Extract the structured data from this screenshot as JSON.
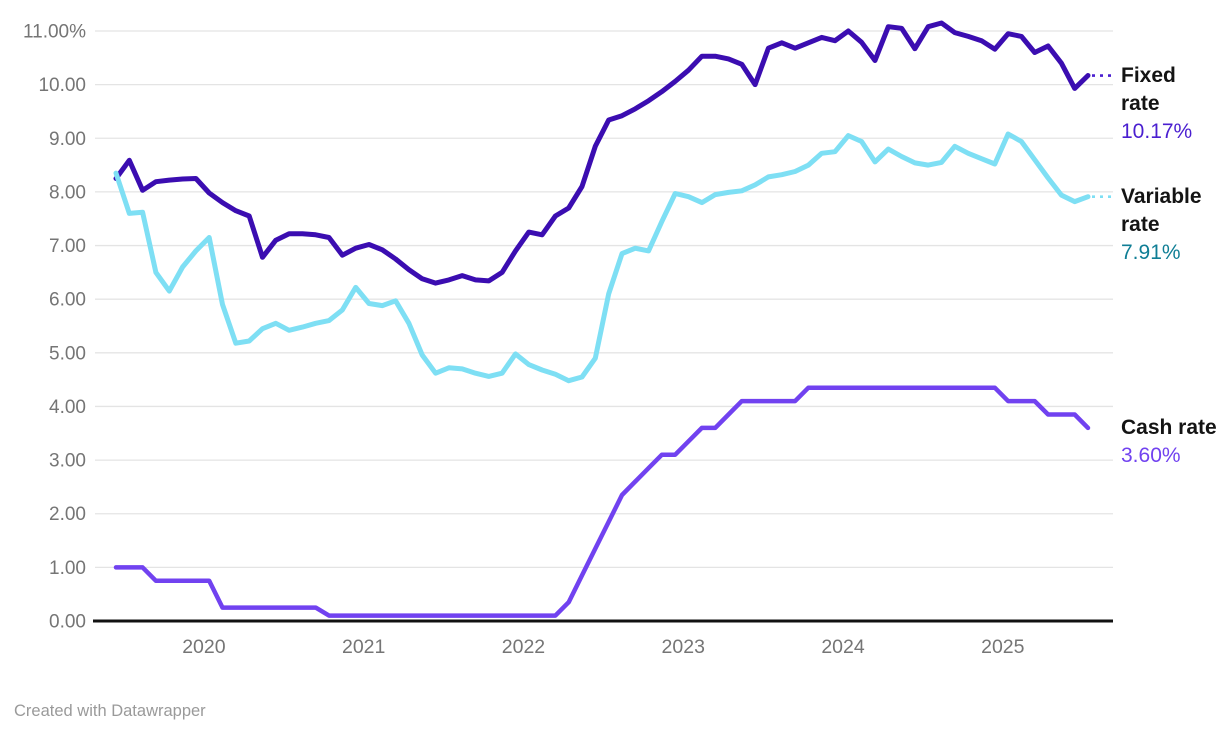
{
  "footer": {
    "text": "Created with Datawrapper"
  },
  "chart": {
    "y_axis": {
      "ticks": [
        {
          "v": 11,
          "label": "11.00%"
        },
        {
          "v": 10,
          "label": "10.00"
        },
        {
          "v": 9,
          "label": "9.00"
        },
        {
          "v": 8,
          "label": "8.00"
        },
        {
          "v": 7,
          "label": "7.00"
        },
        {
          "v": 6,
          "label": "6.00"
        },
        {
          "v": 5,
          "label": "5.00"
        },
        {
          "v": 4,
          "label": "4.00"
        },
        {
          "v": 3,
          "label": "3.00"
        },
        {
          "v": 2,
          "label": "2.00"
        },
        {
          "v": 1,
          "label": "1.00"
        },
        {
          "v": 0,
          "label": "0.00"
        }
      ],
      "text_color": "#757575",
      "grid_color": "#e4e4e4",
      "axis_color": "#121212"
    },
    "x_axis": {
      "years": [
        {
          "label": "2020",
          "i": 6
        },
        {
          "label": "2021",
          "i": 18
        },
        {
          "label": "2022",
          "i": 30
        },
        {
          "label": "2023",
          "i": 42
        },
        {
          "label": "2024",
          "i": 54
        },
        {
          "label": "2025",
          "i": 66
        }
      ],
      "text_color": "#757575"
    }
  },
  "chart_data": {
    "type": "line",
    "title": "",
    "xlabel": "",
    "ylabel": "",
    "x_unit": "month",
    "x_start": "2019-07",
    "x_end": "2025-08",
    "ylim": [
      0,
      11
    ],
    "grid": "horizontal",
    "legend_position": "right-edge-labels",
    "series": [
      {
        "id": "fixed-rate",
        "name": "Fixed rate",
        "final_label": "10.17%",
        "color": "#3b0db1",
        "value_color": "#4a1fd0",
        "connector": true,
        "connector_color": "#4a1fd0",
        "values": [
          8.25,
          8.59,
          8.03,
          8.19,
          8.22,
          8.24,
          8.25,
          7.98,
          7.8,
          7.65,
          7.55,
          6.78,
          7.1,
          7.22,
          7.22,
          7.2,
          7.15,
          6.82,
          6.95,
          7.02,
          6.92,
          6.75,
          6.55,
          6.38,
          6.3,
          6.36,
          6.44,
          6.36,
          6.34,
          6.5,
          6.9,
          7.25,
          7.2,
          7.55,
          7.7,
          8.1,
          8.85,
          9.34,
          9.42,
          9.55,
          9.7,
          9.87,
          10.06,
          10.27,
          10.53,
          10.53,
          10.48,
          10.38,
          10.0,
          10.68,
          10.78,
          10.68,
          10.78,
          10.88,
          10.82,
          11.0,
          10.79,
          10.45,
          11.08,
          11.05,
          10.67,
          11.08,
          11.15,
          10.97,
          10.9,
          10.82,
          10.66,
          10.95,
          10.9,
          10.6,
          10.72,
          10.4,
          9.93,
          10.17
        ]
      },
      {
        "id": "variable-rate",
        "name": "Variable rate",
        "final_label": "7.91%",
        "color": "#7edff4",
        "value_color": "#0f7e95",
        "connector": true,
        "connector_color": "#7edff4",
        "values": [
          8.35,
          7.6,
          7.62,
          6.5,
          6.15,
          6.6,
          6.9,
          7.15,
          5.9,
          5.18,
          5.22,
          5.45,
          5.55,
          5.42,
          5.48,
          5.55,
          5.6,
          5.8,
          6.22,
          5.92,
          5.88,
          5.97,
          5.55,
          4.96,
          4.62,
          4.72,
          4.7,
          4.62,
          4.56,
          4.62,
          4.98,
          4.78,
          4.68,
          4.6,
          4.48,
          4.55,
          4.9,
          6.1,
          6.85,
          6.95,
          6.9,
          7.45,
          7.97,
          7.91,
          7.8,
          7.95,
          7.99,
          8.02,
          8.13,
          8.28,
          8.32,
          8.38,
          8.5,
          8.72,
          8.75,
          9.05,
          8.94,
          8.56,
          8.8,
          8.66,
          8.54,
          8.5,
          8.55,
          8.85,
          8.72,
          8.62,
          8.52,
          9.08,
          8.94,
          8.6,
          8.26,
          7.94,
          7.82,
          7.91
        ]
      },
      {
        "id": "cash-rate",
        "name": "Cash rate",
        "final_label": "3.60%",
        "color": "#7142f0",
        "value_color": "#7142f0",
        "connector": false,
        "connector_color": "#7142f0",
        "values": [
          1.0,
          1.0,
          1.0,
          0.75,
          0.75,
          0.75,
          0.75,
          0.75,
          0.25,
          0.25,
          0.25,
          0.25,
          0.25,
          0.25,
          0.25,
          0.25,
          0.1,
          0.1,
          0.1,
          0.1,
          0.1,
          0.1,
          0.1,
          0.1,
          0.1,
          0.1,
          0.1,
          0.1,
          0.1,
          0.1,
          0.1,
          0.1,
          0.1,
          0.1,
          0.35,
          0.85,
          1.35,
          1.85,
          2.35,
          2.6,
          2.85,
          3.1,
          3.1,
          3.35,
          3.6,
          3.6,
          3.85,
          4.1,
          4.1,
          4.1,
          4.1,
          4.1,
          4.35,
          4.35,
          4.35,
          4.35,
          4.35,
          4.35,
          4.35,
          4.35,
          4.35,
          4.35,
          4.35,
          4.35,
          4.35,
          4.35,
          4.35,
          4.1,
          4.1,
          4.1,
          3.85,
          3.85,
          3.85,
          3.6
        ]
      }
    ]
  }
}
